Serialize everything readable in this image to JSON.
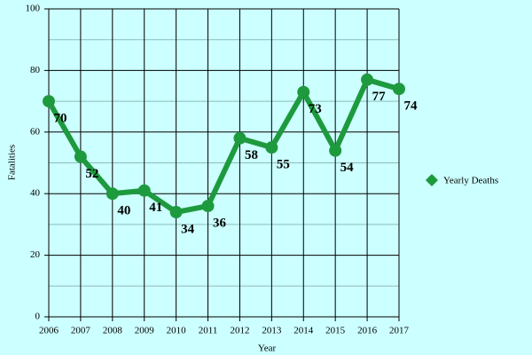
{
  "chart_data": {
    "type": "line",
    "x_label": "Year",
    "y_label": "Fatalities",
    "x": [
      2006,
      2007,
      2008,
      2009,
      2010,
      2011,
      2012,
      2013,
      2014,
      2015,
      2016,
      2017
    ],
    "series": [
      {
        "name": "Yearly Deaths",
        "color": "#1e9a3e",
        "values": [
          70,
          52,
          40,
          41,
          34,
          36,
          58,
          55,
          73,
          54,
          77,
          74
        ]
      }
    ],
    "xlim": [
      2006,
      2017
    ],
    "xticks": [
      2006,
      2007,
      2008,
      2009,
      2010,
      2011,
      2012,
      2013,
      2014,
      2015,
      2016,
      2017
    ],
    "ylim": [
      0,
      100
    ],
    "yticks": [
      0,
      20,
      40,
      60,
      80,
      100
    ],
    "minor_yticks": [
      10,
      30,
      50,
      70,
      90
    ],
    "grid": true,
    "data_labels": true,
    "legend": "right"
  }
}
